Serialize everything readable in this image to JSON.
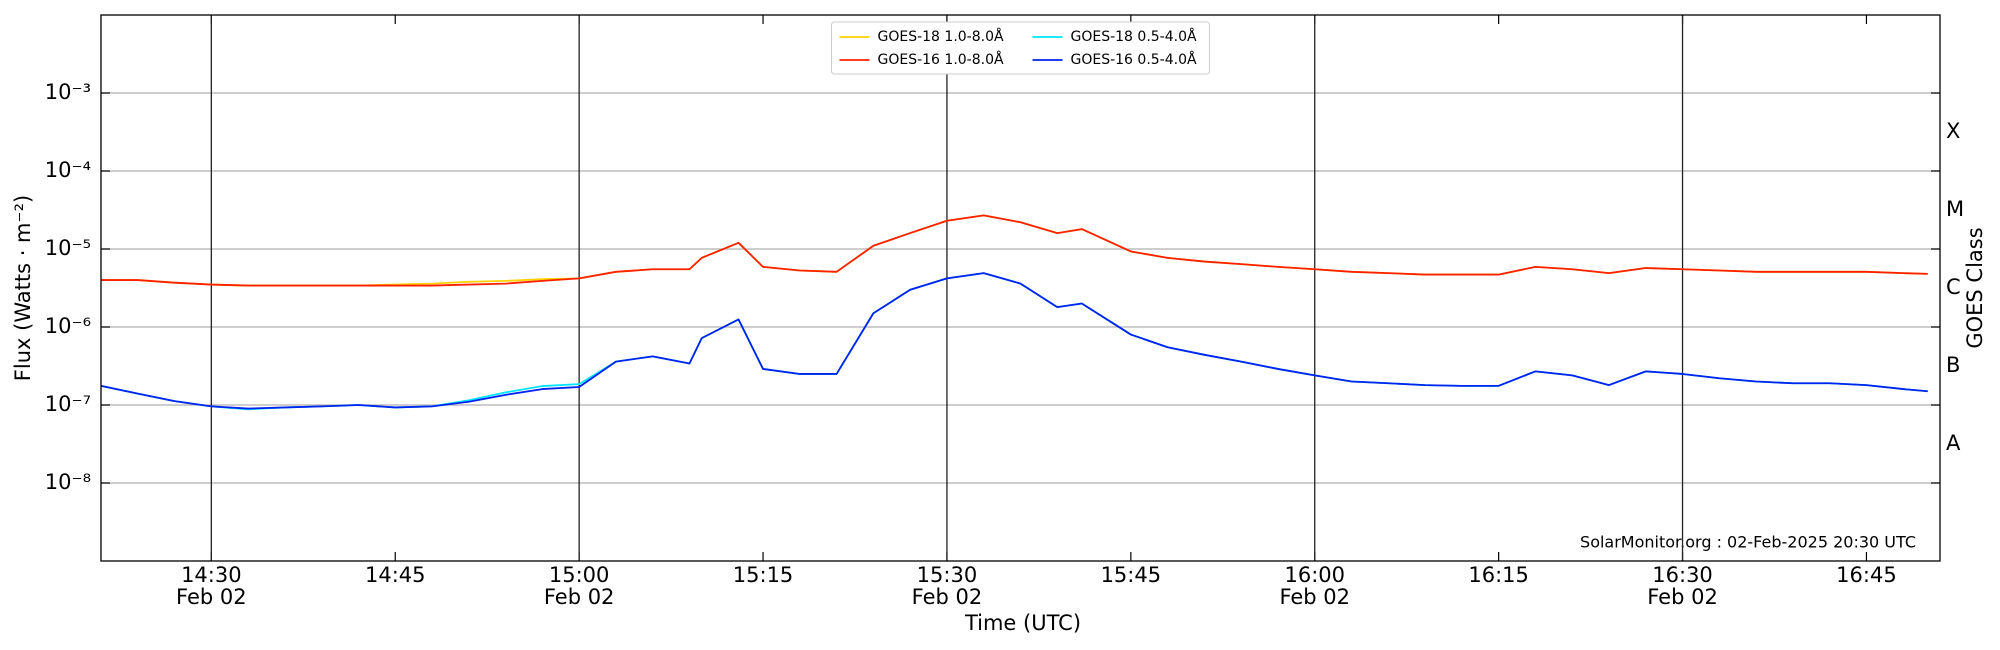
{
  "chart_data": {
    "type": "line",
    "x_label": "Time (UTC)",
    "y_label": "Flux (Watts · m⁻²)",
    "y2_label": "GOES Class",
    "annotation": "SolarMonitor.org : 02-Feb-2025 20:30 UTC",
    "log_scale": true,
    "grid": true,
    "legend_position": "upper center",
    "x": [
      "14:21",
      "14:24",
      "14:27",
      "14:30",
      "14:33",
      "14:36",
      "14:39",
      "14:42",
      "14:45",
      "14:48",
      "14:51",
      "14:54",
      "14:57",
      "15:00",
      "15:03",
      "15:06",
      "15:09",
      "15:10",
      "15:13",
      "15:15",
      "15:18",
      "15:21",
      "15:24",
      "15:27",
      "15:30",
      "15:33",
      "15:36",
      "15:39",
      "15:41",
      "15:45",
      "15:48",
      "15:51",
      "15:54",
      "15:57",
      "16:00",
      "16:03",
      "16:06",
      "16:09",
      "16:12",
      "16:15",
      "16:18",
      "16:21",
      "16:24",
      "16:27",
      "16:30",
      "16:33",
      "16:36",
      "16:39",
      "16:42",
      "16:45",
      "16:48",
      "16:50"
    ],
    "xlim": [
      "14:21",
      "16:51"
    ],
    "xticks": [
      "14:30",
      "14:45",
      "15:00",
      "15:15",
      "15:30",
      "15:45",
      "16:00",
      "16:15",
      "16:30",
      "16:45"
    ],
    "xtick_dates": [
      {
        "value": "14:30",
        "label": "Feb 02"
      },
      {
        "value": "15:00",
        "label": "Feb 02"
      },
      {
        "value": "15:30",
        "label": "Feb 02"
      },
      {
        "value": "16:00",
        "label": "Feb 02"
      },
      {
        "value": "16:30",
        "label": "Feb 02"
      }
    ],
    "ylim": [
      1e-09,
      0.01
    ],
    "yticks": [
      {
        "value": 1e-08,
        "label": "10⁻⁸"
      },
      {
        "value": 1e-07,
        "label": "10⁻⁷"
      },
      {
        "value": 1e-06,
        "label": "10⁻⁶"
      },
      {
        "value": 1e-05,
        "label": "10⁻⁵"
      },
      {
        "value": 0.0001,
        "label": "10⁻⁴"
      },
      {
        "value": 0.001,
        "label": "10⁻³"
      }
    ],
    "y2lim": [
      1e-09,
      0.01
    ],
    "y2ticks": [
      {
        "value": 3.16e-08,
        "label": "A"
      },
      {
        "value": 3.16e-07,
        "label": "B"
      },
      {
        "value": 3.16e-06,
        "label": "C"
      },
      {
        "value": 3.16e-05,
        "label": "M"
      },
      {
        "value": 0.000316,
        "label": "X"
      }
    ],
    "series": [
      {
        "name": "GOES-18 1.0-8.0Å",
        "color": "#ffd000",
        "values": [
          4e-06,
          4e-06,
          3.7e-06,
          3.5e-06,
          3.4e-06,
          3.4e-06,
          3.4e-06,
          3.4e-06,
          3.5e-06,
          3.6e-06,
          3.8e-06,
          3.9e-06,
          4.1e-06,
          4.2e-06,
          5.1e-06,
          5.5e-06,
          5.5e-06,
          7.7e-06,
          1.2e-05,
          5.9e-06,
          5.3e-06,
          5.1e-06,
          1.1e-05,
          1.6e-05,
          2.3e-05,
          2.7e-05,
          2.2e-05,
          1.6e-05,
          1.8e-05,
          9.3e-06,
          7.7e-06,
          6.9e-06,
          6.4e-06,
          5.9e-06,
          5.5e-06,
          5.1e-06,
          4.9e-06,
          4.7e-06,
          4.7e-06,
          4.7e-06,
          5.9e-06,
          5.5e-06,
          4.9e-06,
          5.7e-06,
          5.5e-06,
          5.3e-06,
          5.1e-06,
          5.1e-06,
          5.1e-06,
          5.1e-06,
          4.9e-06,
          4.8e-06
        ]
      },
      {
        "name": "GOES-16 1.0-8.0Å",
        "color": "#ff2000",
        "values": [
          4e-06,
          4e-06,
          3.7e-06,
          3.5e-06,
          3.4e-06,
          3.4e-06,
          3.4e-06,
          3.4e-06,
          3.4e-06,
          3.4e-06,
          3.5e-06,
          3.6e-06,
          3.9e-06,
          4.2e-06,
          5.1e-06,
          5.5e-06,
          5.5e-06,
          7.7e-06,
          1.2e-05,
          5.9e-06,
          5.3e-06,
          5.1e-06,
          1.1e-05,
          1.6e-05,
          2.3e-05,
          2.7e-05,
          2.2e-05,
          1.6e-05,
          1.8e-05,
          9.3e-06,
          7.7e-06,
          6.9e-06,
          6.4e-06,
          5.9e-06,
          5.5e-06,
          5.1e-06,
          4.9e-06,
          4.7e-06,
          4.7e-06,
          4.7e-06,
          5.9e-06,
          5.5e-06,
          4.9e-06,
          5.7e-06,
          5.5e-06,
          5.3e-06,
          5.1e-06,
          5.1e-06,
          5.1e-06,
          5.1e-06,
          4.9e-06,
          4.8e-06
        ]
      },
      {
        "name": "GOES-18 0.5-4.0Å",
        "color": "#00e5ff",
        "values": [
          1.76e-07,
          1.4e-07,
          1.12e-07,
          9.6e-08,
          8.8e-08,
          9.3e-08,
          9.6e-08,
          1e-07,
          9.3e-08,
          9.6e-08,
          1.15e-07,
          1.45e-07,
          1.75e-07,
          1.85e-07,
          3.6e-07,
          4.2e-07,
          3.4e-07,
          7.2e-07,
          1.25e-06,
          2.9e-07,
          2.5e-07,
          2.5e-07,
          1.5e-06,
          3e-06,
          4.2e-06,
          4.9e-06,
          3.6e-06,
          1.8e-06,
          2e-06,
          8e-07,
          5.5e-07,
          4.4e-07,
          3.6e-07,
          2.9e-07,
          2.4e-07,
          2e-07,
          1.9e-07,
          1.8e-07,
          1.76e-07,
          1.76e-07,
          2.7e-07,
          2.4e-07,
          1.8e-07,
          2.7e-07,
          2.5e-07,
          2.2e-07,
          2e-07,
          1.9e-07,
          1.9e-07,
          1.8e-07,
          1.6e-07,
          1.5e-07
        ]
      },
      {
        "name": "GOES-16 0.5-4.0Å",
        "color": "#0022ee",
        "values": [
          1.76e-07,
          1.4e-07,
          1.12e-07,
          9.6e-08,
          9e-08,
          9.3e-08,
          9.6e-08,
          1e-07,
          9.3e-08,
          9.6e-08,
          1.1e-07,
          1.35e-07,
          1.6e-07,
          1.7e-07,
          3.6e-07,
          4.2e-07,
          3.4e-07,
          7.2e-07,
          1.25e-06,
          2.9e-07,
          2.5e-07,
          2.5e-07,
          1.5e-06,
          3e-06,
          4.2e-06,
          4.9e-06,
          3.6e-06,
          1.8e-06,
          2e-06,
          8e-07,
          5.5e-07,
          4.4e-07,
          3.6e-07,
          2.9e-07,
          2.4e-07,
          2e-07,
          1.9e-07,
          1.8e-07,
          1.76e-07,
          1.76e-07,
          2.7e-07,
          2.4e-07,
          1.8e-07,
          2.7e-07,
          2.5e-07,
          2.2e-07,
          2e-07,
          1.9e-07,
          1.9e-07,
          1.8e-07,
          1.6e-07,
          1.5e-07
        ]
      }
    ]
  }
}
